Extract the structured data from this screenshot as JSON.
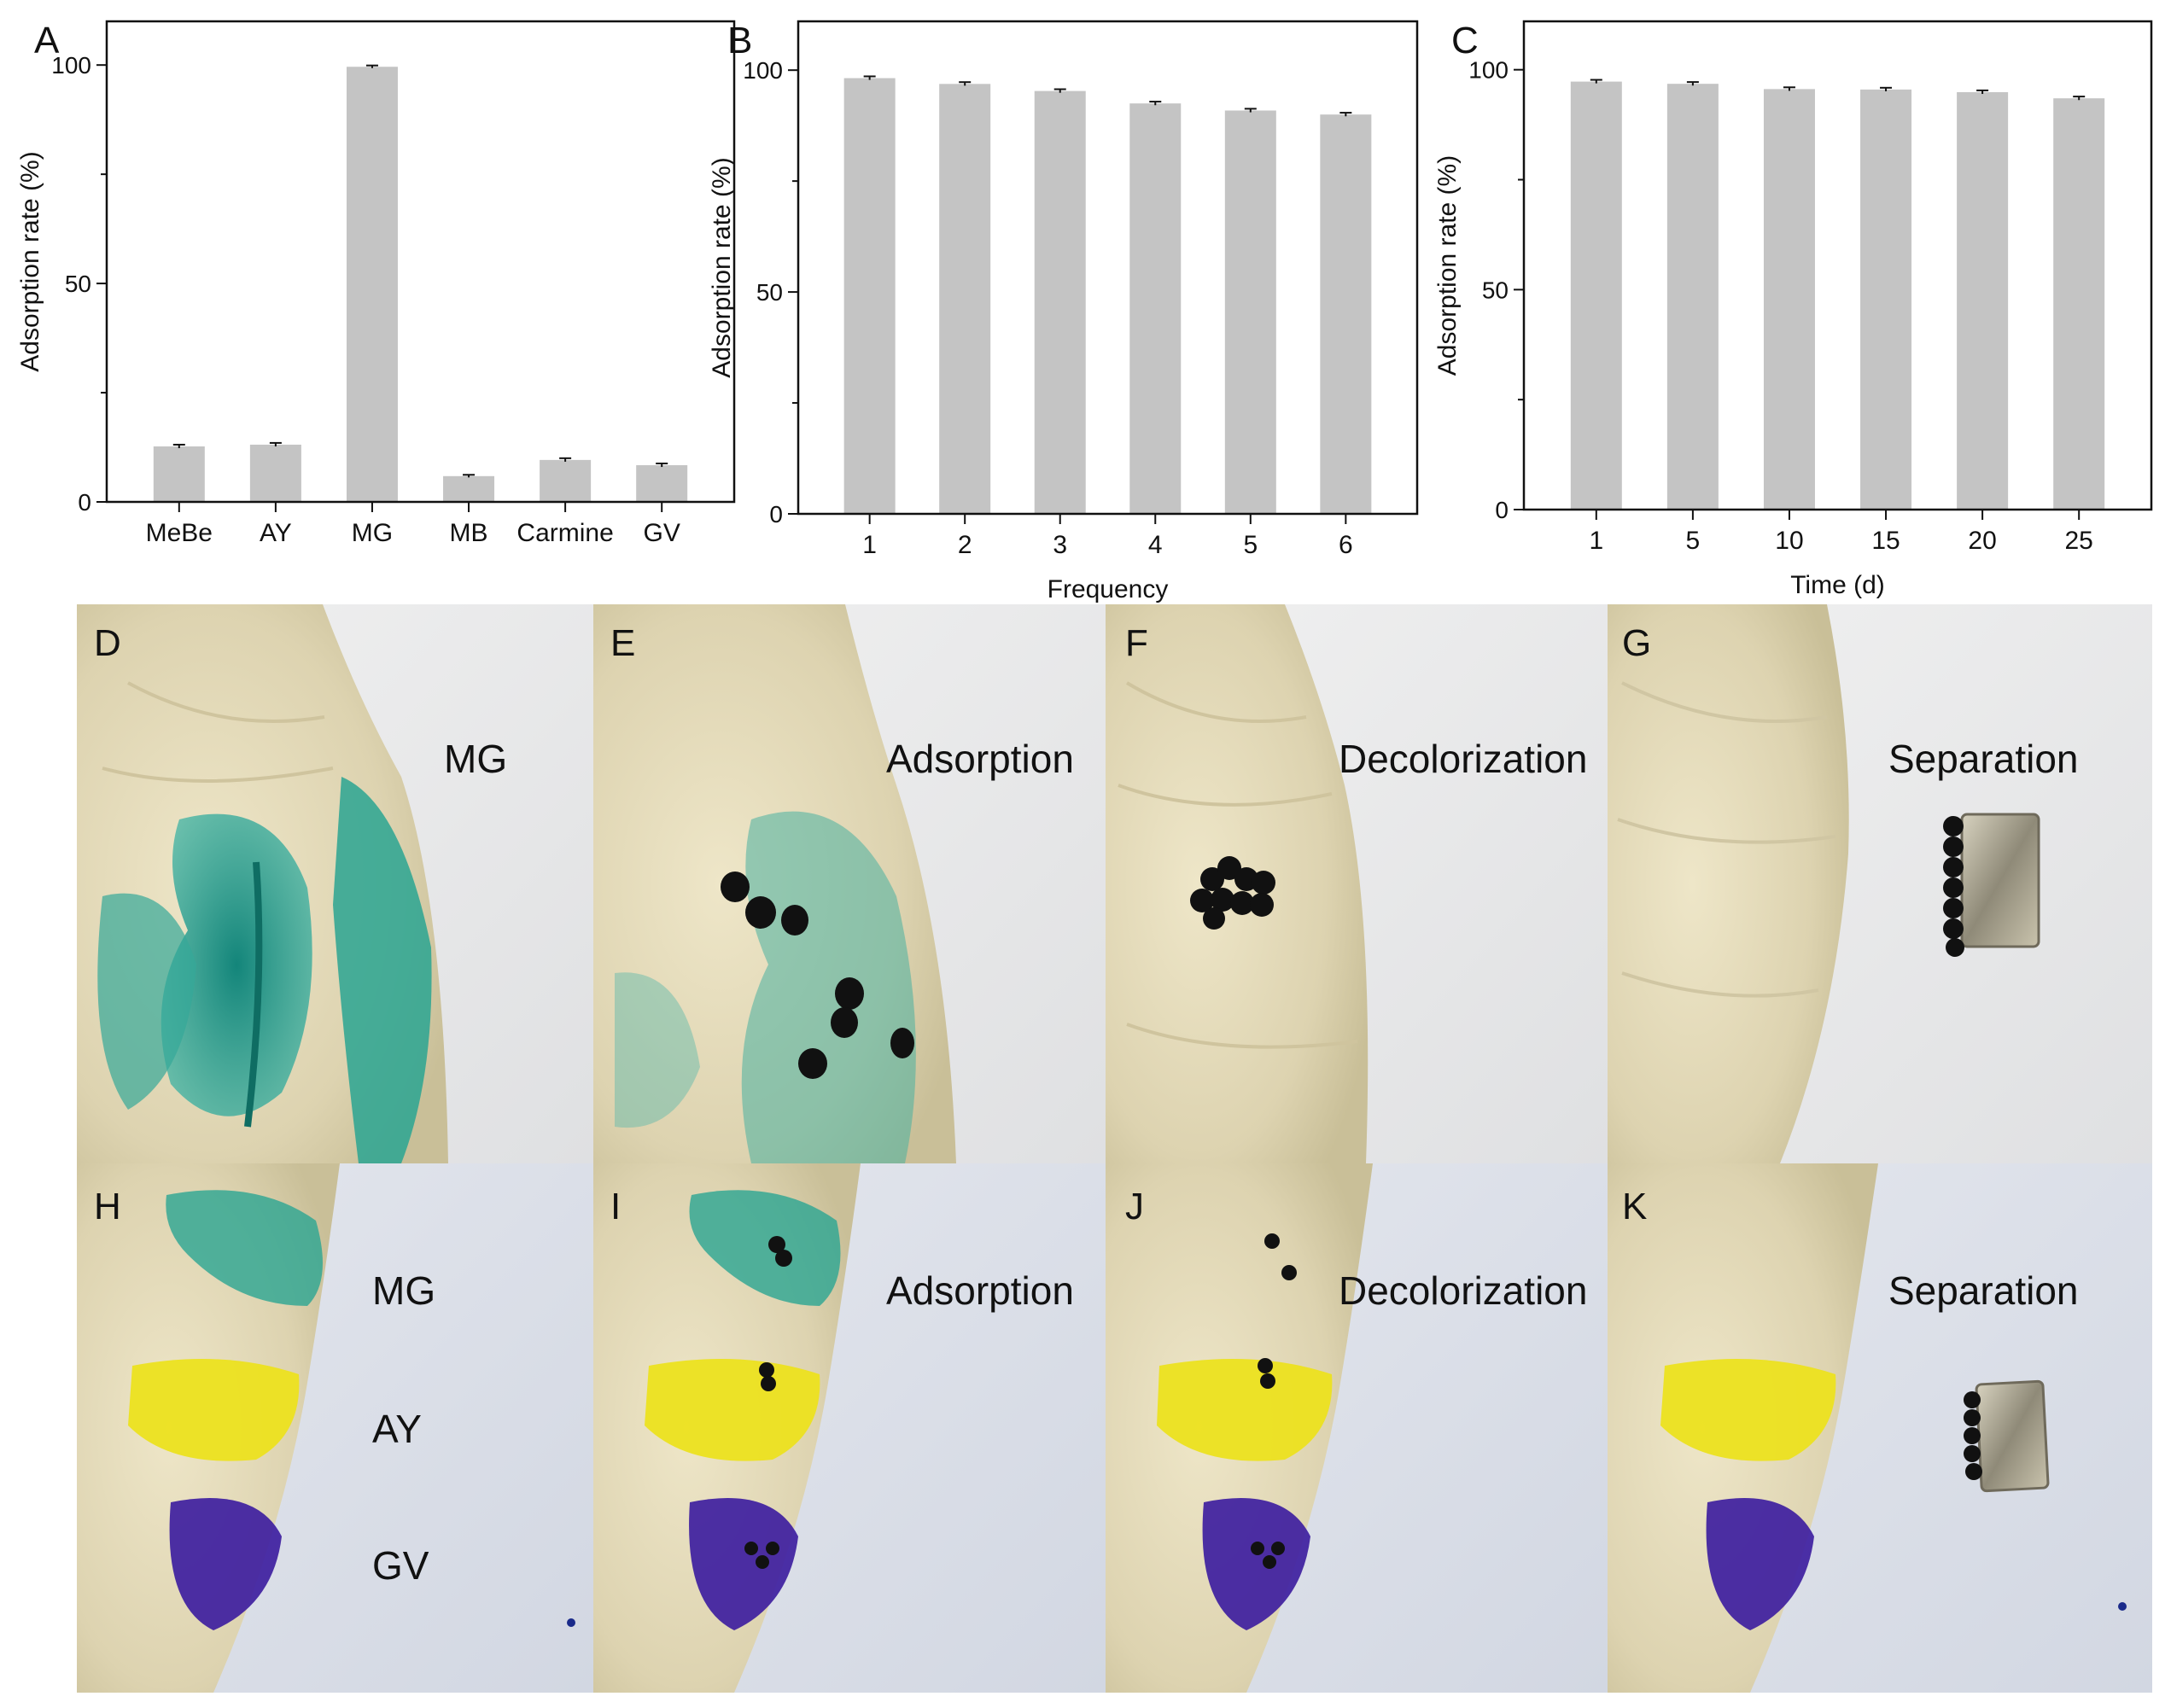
{
  "colors": {
    "bar": "#c4c4c4",
    "axis": "#111111",
    "mg_stain": "#1f9c8f",
    "ay_stain": "#e6de1c",
    "gv_stain": "#3e1ea0",
    "flesh": "#e3dcbf",
    "background_paper": "#e9e9ea",
    "bead": "#111111",
    "magnet": "#b9b39f"
  },
  "chart_data": [
    {
      "panel": "A",
      "type": "bar",
      "categories": [
        "MeBe",
        "AY",
        "MG",
        "MB",
        "Carmine",
        "GV"
      ],
      "values": [
        12.7,
        13.1,
        99.6,
        5.9,
        9.6,
        8.4
      ],
      "errors": [
        0.4,
        0.4,
        0.3,
        0.3,
        0.4,
        0.4
      ],
      "title": "",
      "xlabel": "",
      "ylabel": "Adsorption rate (%)",
      "ylim": [
        0,
        110
      ],
      "yticks": [
        0,
        50,
        100
      ],
      "grid": false
    },
    {
      "panel": "B",
      "type": "bar",
      "categories": [
        "1",
        "2",
        "3",
        "4",
        "5",
        "6"
      ],
      "values": [
        98.2,
        96.9,
        95.3,
        92.5,
        90.9,
        90.0
      ],
      "errors": [
        0.4,
        0.4,
        0.4,
        0.4,
        0.4,
        0.4
      ],
      "title": "",
      "xlabel": "Frequency",
      "ylabel": "Adsorption rate (%)",
      "ylim": [
        0,
        111
      ],
      "yticks": [
        0,
        50,
        100
      ],
      "grid": false
    },
    {
      "panel": "C",
      "type": "bar",
      "categories": [
        "1",
        "5",
        "10",
        "15",
        "20",
        "25"
      ],
      "values": [
        97.3,
        96.8,
        95.6,
        95.5,
        94.9,
        93.5
      ],
      "errors": [
        0.4,
        0.4,
        0.4,
        0.4,
        0.4,
        0.4
      ],
      "title": "",
      "xlabel": "Time (d)",
      "ylabel": "Adsorption rate (%)",
      "ylim": [
        0,
        111
      ],
      "yticks": [
        0,
        50,
        100
      ],
      "grid": false
    }
  ],
  "photos": {
    "row1": [
      {
        "letter": "D",
        "label": "MG",
        "stain": "mg",
        "beads": "none"
      },
      {
        "letter": "E",
        "label": "Adsorption",
        "stain": "mg",
        "beads": "scattered"
      },
      {
        "letter": "F",
        "label": "Decolorization",
        "stain": "none",
        "beads": "cluster"
      },
      {
        "letter": "G",
        "label": "Separation",
        "stain": "none",
        "beads": "magnet"
      }
    ],
    "row2": [
      {
        "letter": "H",
        "stain_labels": [
          "MG",
          "AY",
          "GV"
        ],
        "beads": "none"
      },
      {
        "letter": "I",
        "label": "Adsorption",
        "beads": "on-stains"
      },
      {
        "letter": "J",
        "label": "Decolorization",
        "beads": "on-flesh"
      },
      {
        "letter": "K",
        "label": "Separation",
        "beads": "magnet"
      }
    ]
  }
}
